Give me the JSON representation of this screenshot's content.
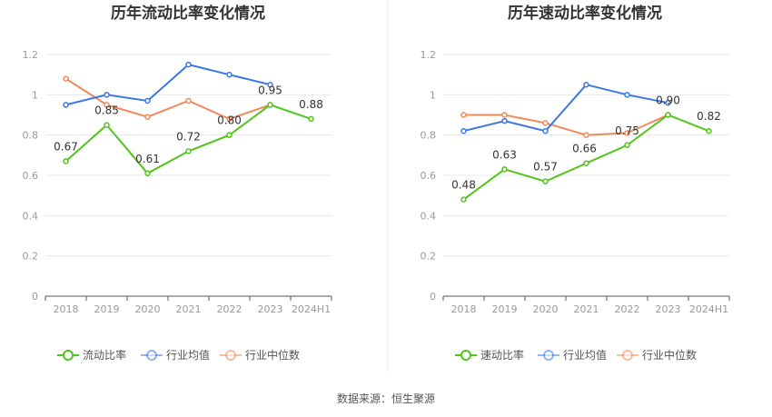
{
  "chart_data": [
    {
      "type": "line",
      "title": "历年流动比率变化情况",
      "categories": [
        "2018",
        "2019",
        "2020",
        "2021",
        "2022",
        "2023",
        "2024H1"
      ],
      "ylim": [
        0,
        1.2
      ],
      "yticks": [
        "0",
        "0.2",
        "0.4",
        "0.6",
        "0.8",
        "1",
        "1.2"
      ],
      "grid": true,
      "legend_position": "bottom",
      "series": [
        {
          "name": "流动比率",
          "color": "#52c41a",
          "values": [
            0.67,
            0.85,
            0.61,
            0.72,
            0.8,
            0.95,
            0.88
          ],
          "labels": [
            "0.67",
            "0.85",
            "0.61",
            "0.72",
            "0.80",
            "0.95",
            "0.88"
          ]
        },
        {
          "name": "行业均值",
          "color": "#3b78e7",
          "values": [
            0.95,
            1.0,
            0.97,
            1.15,
            1.1,
            1.05,
            null
          ]
        },
        {
          "name": "行业中位数",
          "color": "#f08a5d",
          "values": [
            1.08,
            0.95,
            0.89,
            0.97,
            0.88,
            0.95,
            null
          ]
        }
      ]
    },
    {
      "type": "line",
      "title": "历年速动比率变化情况",
      "categories": [
        "2018",
        "2019",
        "2020",
        "2021",
        "2022",
        "2023",
        "2024H1"
      ],
      "ylim": [
        0,
        1.2
      ],
      "yticks": [
        "0",
        "0.2",
        "0.4",
        "0.6",
        "0.8",
        "1",
        "1.2"
      ],
      "grid": true,
      "legend_position": "bottom",
      "series": [
        {
          "name": "速动比率",
          "color": "#52c41a",
          "values": [
            0.48,
            0.63,
            0.57,
            0.66,
            0.75,
            0.9,
            0.82
          ],
          "labels": [
            "0.48",
            "0.63",
            "0.57",
            "0.66",
            "0.75",
            "0.90",
            "0.82"
          ]
        },
        {
          "name": "行业均值",
          "color": "#3b78e7",
          "values": [
            0.82,
            0.87,
            0.82,
            1.05,
            1.0,
            0.96,
            null
          ]
        },
        {
          "name": "行业中位数",
          "color": "#f08a5d",
          "values": [
            0.9,
            0.9,
            0.86,
            0.8,
            0.81,
            0.9,
            null
          ]
        }
      ]
    }
  ],
  "footer": {
    "source": "数据来源：恒生聚源"
  }
}
